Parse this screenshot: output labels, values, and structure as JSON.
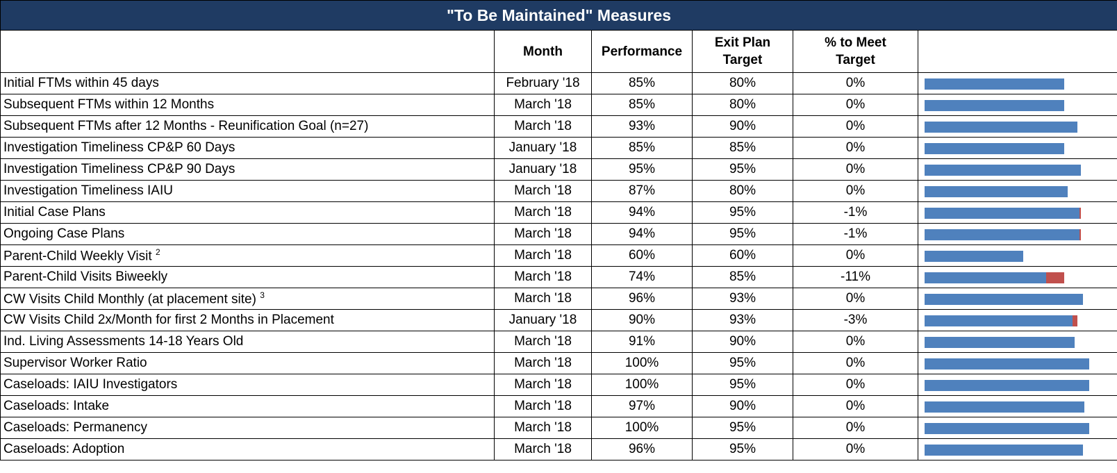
{
  "title": "\"To Be Maintained\" Measures",
  "columns": [
    "Month",
    "Performance",
    "Exit Plan Target",
    "% to Meet Target"
  ],
  "rows": [
    {
      "measure": "Initial FTMs within 45 days",
      "month": "February '18",
      "performance": "85%",
      "target": "80%",
      "to_meet": "0%"
    },
    {
      "measure": "Subsequent FTMs within 12 Months",
      "month": "March '18",
      "performance": "85%",
      "target": "80%",
      "to_meet": "0%"
    },
    {
      "measure": "Subsequent FTMs after 12 Months - Reunification Goal (n=27)",
      "month": "March '18",
      "performance": "93%",
      "target": "90%",
      "to_meet": "0%"
    },
    {
      "measure": "Investigation Timeliness CP&P 60 Days",
      "month": "January '18",
      "performance": "85%",
      "target": "85%",
      "to_meet": "0%"
    },
    {
      "measure": "Investigation Timeliness CP&P 90 Days",
      "month": "January '18",
      "performance": "95%",
      "target": "95%",
      "to_meet": "0%"
    },
    {
      "measure": "Investigation Timeliness IAIU",
      "month": "March '18",
      "performance": "87%",
      "target": "80%",
      "to_meet": "0%"
    },
    {
      "measure": "Initial Case Plans",
      "month": "March '18",
      "performance": "94%",
      "target": "95%",
      "to_meet": "-1%"
    },
    {
      "measure": "Ongoing Case Plans",
      "month": "March '18",
      "performance": "94%",
      "target": "95%",
      "to_meet": "-1%"
    },
    {
      "measure": "Parent-Child Weekly Visit",
      "note": "2",
      "month": "March '18",
      "performance": "60%",
      "target": "60%",
      "to_meet": "0%"
    },
    {
      "measure": "Parent-Child Visits Biweekly",
      "month": "March '18",
      "performance": "74%",
      "target": "85%",
      "to_meet": "-11%"
    },
    {
      "measure": "CW Visits Child Monthly (at placement site)",
      "note": "3",
      "month": "March '18",
      "performance": "96%",
      "target": "93%",
      "to_meet": "0%"
    },
    {
      "measure": "CW Visits Child 2x/Month  for first 2 Months in Placement",
      "month": "January '18",
      "performance": "90%",
      "target": "93%",
      "to_meet": "-3%"
    },
    {
      "measure": "Ind. Living Assessments 14-18 Years Old",
      "month": "March '18",
      "performance": "91%",
      "target": "90%",
      "to_meet": "0%"
    },
    {
      "measure": "Supervisor Worker Ratio",
      "month": "March '18",
      "performance": "100%",
      "target": "95%",
      "to_meet": "0%"
    },
    {
      "measure": "Caseloads: IAIU Investigators",
      "month": "March '18",
      "performance": "100%",
      "target": "95%",
      "to_meet": "0%"
    },
    {
      "measure": "Caseloads: Intake",
      "month": "March '18",
      "performance": "97%",
      "target": "90%",
      "to_meet": "0%"
    },
    {
      "measure": "Caseloads: Permanency",
      "month": "March '18",
      "performance": "100%",
      "target": "95%",
      "to_meet": "0%"
    },
    {
      "measure": "Caseloads: Adoption",
      "month": "March '18",
      "performance": "96%",
      "target": "95%",
      "to_meet": "0%"
    }
  ]
}
